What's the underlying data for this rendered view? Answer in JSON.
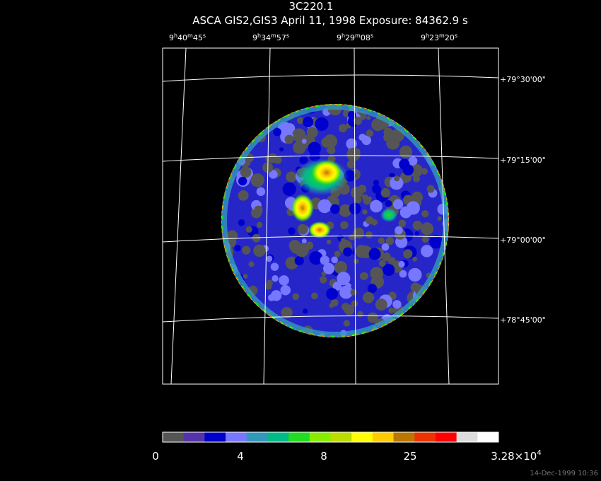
{
  "header": {
    "title": "3C220.1",
    "subtitle": "ASCA GIS2,GIS3 April 11, 1998 Exposure: 84362.9 s"
  },
  "ra_labels": [
    [
      "9",
      "h",
      "40",
      "m",
      "45",
      "s"
    ],
    [
      "9",
      "h",
      "34",
      "m",
      "57",
      "s"
    ],
    [
      "9",
      "h",
      "29",
      "m",
      "08",
      "s"
    ],
    [
      "9",
      "h",
      "23",
      "m",
      "20",
      "s"
    ]
  ],
  "dec_labels": [
    "+79°30'00\"",
    "+79°15'00\"",
    "+79°00'00\"",
    "+78°45'00\""
  ],
  "colorbar": {
    "colors": [
      "#555555",
      "#5533aa",
      "#0000cc",
      "#7777ff",
      "#3399bb",
      "#00bb88",
      "#22dd22",
      "#88ee00",
      "#bbdd00",
      "#ffff00",
      "#ffcc00",
      "#bb7700",
      "#ee3300",
      "#ff0000",
      "#dddddd",
      "#ffffff"
    ],
    "labels": [
      [
        "0"
      ],
      [
        "4"
      ],
      [
        "8"
      ],
      [
        "25"
      ],
      [
        "3.28×10",
        "4"
      ]
    ]
  },
  "footer": {
    "timestamp": "14-Dec-1999 10:36"
  }
}
